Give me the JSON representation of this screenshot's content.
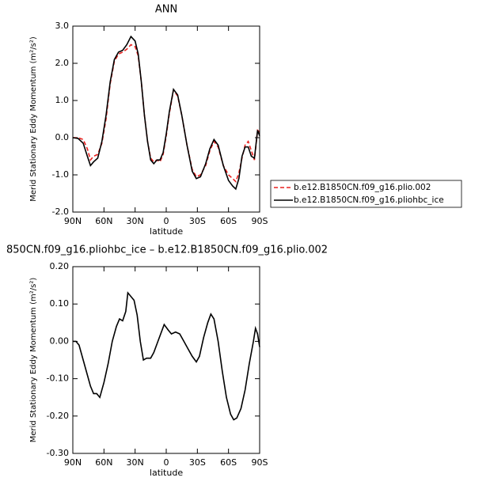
{
  "chart_data": [
    {
      "type": "line",
      "title": "ANN",
      "xlabel": "latitude",
      "ylabel": "Merid Stationary Eddy Momentum (m²/s²)",
      "x": [
        90,
        85,
        80,
        76,
        73,
        70,
        66,
        62,
        58,
        54,
        50,
        46,
        42,
        38,
        34,
        30,
        27,
        24,
        21,
        18,
        15,
        12,
        9,
        6,
        3,
        0,
        -3,
        -7,
        -11,
        -15,
        -20,
        -25,
        -29,
        -33,
        -38,
        -42,
        -46,
        -50,
        -55,
        -60,
        -64,
        -67,
        -70,
        -73,
        -76,
        -79,
        -82,
        -85,
        -88,
        -90
      ],
      "series": [
        {
          "name": "b.e12.B1850CN.f09_g16.plio.002",
          "color": "#e8201e",
          "dash": "dashed",
          "values": [
            0.0,
            0.0,
            -0.05,
            -0.3,
            -0.6,
            -0.5,
            -0.45,
            -0.15,
            0.5,
            1.45,
            2.05,
            2.25,
            2.3,
            2.38,
            2.5,
            2.45,
            2.2,
            1.5,
            0.6,
            -0.1,
            -0.55,
            -0.65,
            -0.6,
            -0.65,
            -0.45,
            0.05,
            0.65,
            1.28,
            1.12,
            0.6,
            -0.2,
            -0.85,
            -1.05,
            -1.0,
            -0.75,
            -0.35,
            -0.1,
            -0.25,
            -0.75,
            -1.0,
            -1.1,
            -1.18,
            -0.95,
            -0.55,
            -0.2,
            -0.1,
            -0.35,
            -0.6,
            0.2,
            0.15
          ]
        },
        {
          "name": "b.e12.B1850CN.f09_g16.pliohbc_ice",
          "color": "#000000",
          "dash": "solid",
          "values": [
            0.0,
            -0.02,
            -0.15,
            -0.5,
            -0.75,
            -0.65,
            -0.55,
            -0.1,
            0.6,
            1.5,
            2.1,
            2.3,
            2.35,
            2.5,
            2.72,
            2.6,
            2.25,
            1.5,
            0.6,
            -0.1,
            -0.6,
            -0.7,
            -0.6,
            -0.6,
            -0.4,
            0.1,
            0.7,
            1.3,
            1.15,
            0.6,
            -0.2,
            -0.9,
            -1.1,
            -1.05,
            -0.7,
            -0.3,
            -0.05,
            -0.2,
            -0.75,
            -1.15,
            -1.3,
            -1.38,
            -1.1,
            -0.5,
            -0.25,
            -0.25,
            -0.5,
            -0.55,
            0.2,
            0.05
          ]
        }
      ],
      "xlim": [
        90,
        -90
      ],
      "xticks": [
        {
          "value": 90,
          "label": "90N"
        },
        {
          "value": 60,
          "label": "60N"
        },
        {
          "value": 30,
          "label": "30N"
        },
        0,
        {
          "value": -30,
          "label": "30S"
        },
        {
          "value": -60,
          "label": "60S"
        },
        {
          "value": -90,
          "label": "90S"
        }
      ],
      "ylim": [
        -2,
        3
      ],
      "yticks": [
        {
          "value": -2,
          "label": "-2.0"
        },
        {
          "value": -1,
          "label": "-1.0"
        },
        {
          "value": 0,
          "label": "0.0"
        },
        {
          "value": 1,
          "label": "1.0"
        },
        {
          "value": 2,
          "label": "2.0"
        },
        {
          "value": 3,
          "label": "3.0"
        }
      ],
      "legend": "right"
    },
    {
      "type": "line",
      "title": "850CN.f09_g16.pliohbc_ice – b.e12.B1850CN.f09_g16.plio.002",
      "xlabel": "latitude",
      "ylabel": "Merid Stationary Eddy Momentum (m²/s²)",
      "x": [
        90,
        87,
        84,
        80,
        76,
        73,
        70,
        67,
        64,
        60,
        56,
        52,
        48,
        45,
        42,
        39,
        37,
        34,
        31,
        28,
        25,
        22,
        19,
        15,
        12,
        8,
        2,
        -2,
        -5,
        -9,
        -13,
        -17,
        -21,
        -25,
        -29,
        -32,
        -36,
        -40,
        -43,
        -46,
        -50,
        -54,
        -58,
        -62,
        -65,
        -68,
        -72,
        -76,
        -80,
        -84,
        -86,
        -88,
        -90
      ],
      "series": [
        {
          "color": "#000000",
          "dash": "solid",
          "values": [
            0.0,
            0.0,
            -0.01,
            -0.05,
            -0.09,
            -0.12,
            -0.14,
            -0.14,
            -0.15,
            -0.11,
            -0.06,
            0.0,
            0.04,
            0.06,
            0.055,
            0.08,
            0.13,
            0.12,
            0.11,
            0.07,
            0.0,
            -0.05,
            -0.045,
            -0.045,
            -0.03,
            0.0,
            0.045,
            0.03,
            0.02,
            0.025,
            0.02,
            0.0,
            -0.02,
            -0.04,
            -0.055,
            -0.04,
            0.01,
            0.05,
            0.073,
            0.06,
            0.0,
            -0.08,
            -0.15,
            -0.195,
            -0.21,
            -0.205,
            -0.18,
            -0.13,
            -0.06,
            0.0,
            0.035,
            0.02,
            -0.015
          ]
        }
      ],
      "xlim": [
        90,
        -90
      ],
      "xticks": [
        {
          "value": 90,
          "label": "90N"
        },
        {
          "value": 60,
          "label": "60N"
        },
        {
          "value": 30,
          "label": "30N"
        },
        0,
        {
          "value": -30,
          "label": "30S"
        },
        {
          "value": -60,
          "label": "60S"
        },
        {
          "value": -90,
          "label": "90S"
        }
      ],
      "ylim": [
        -0.3,
        0.2
      ],
      "yticks": [
        {
          "value": -0.3,
          "label": "-0.30"
        },
        {
          "value": -0.2,
          "label": "-0.20"
        },
        {
          "value": -0.1,
          "label": "-0.10"
        },
        {
          "value": 0,
          "label": "0.00"
        },
        {
          "value": 0.1,
          "label": "0.10"
        },
        {
          "value": 0.2,
          "label": "0.20"
        }
      ]
    }
  ]
}
